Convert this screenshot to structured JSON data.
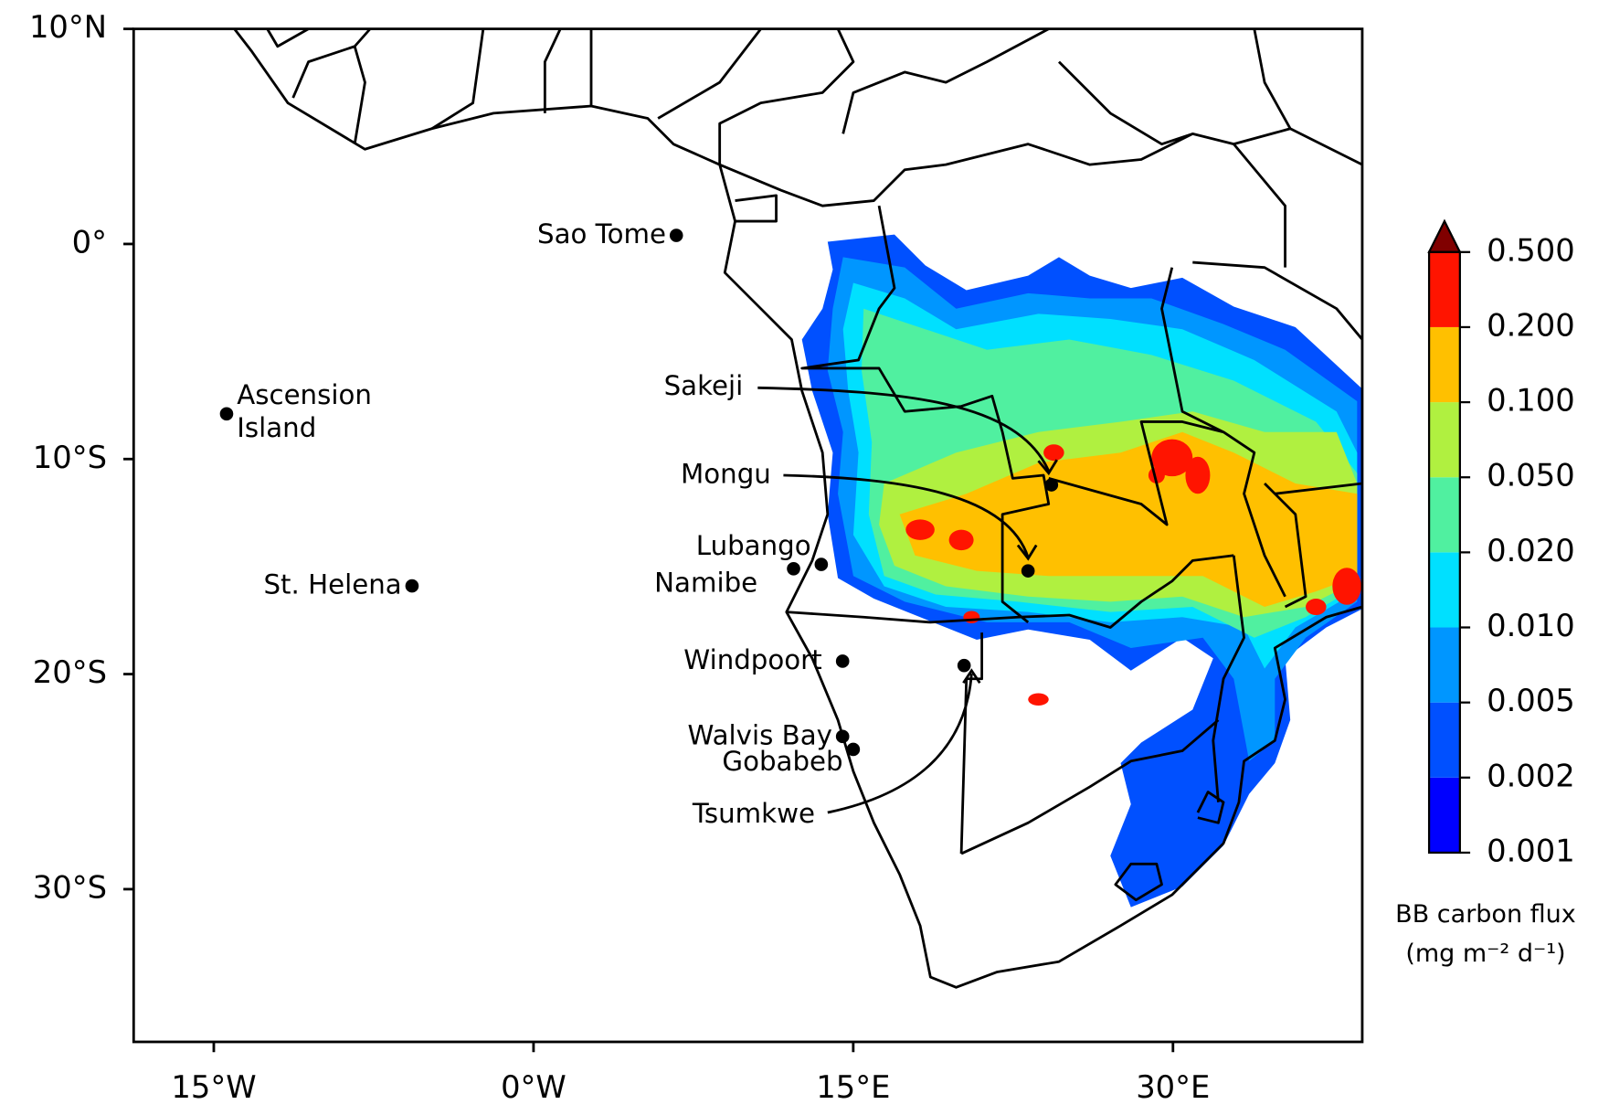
{
  "chart_data": {
    "type": "map",
    "xlim": [
      -18.76,
      38.88
    ],
    "ylim": [
      -37.1,
      10
    ],
    "xticks": [
      {
        "value": -15,
        "label": "15°W"
      },
      {
        "value": 0,
        "label": "0°W"
      },
      {
        "value": 15,
        "label": "15°E"
      },
      {
        "value": 30,
        "label": "30°E"
      }
    ],
    "yticks": [
      {
        "value": 10,
        "label": "10°N"
      },
      {
        "value": 0,
        "label": "0°"
      },
      {
        "value": -10,
        "label": "10°S"
      },
      {
        "value": -20,
        "label": "20°S"
      },
      {
        "value": -30,
        "label": "30°S"
      }
    ],
    "sites": [
      {
        "name": "Sao Tome",
        "lon": 6.7,
        "lat": 0.4
      },
      {
        "name": [
          "Ascension",
          "Island"
        ],
        "lon": -14.4,
        "lat": -7.9
      },
      {
        "name": "St. Helena",
        "lon": -5.7,
        "lat": -15.9
      },
      {
        "name": "Sakeji",
        "lon": 24.3,
        "lat": -11.2
      },
      {
        "name": "Mongu",
        "lon": 23.2,
        "lat": -15.2
      },
      {
        "name": "Lubango",
        "lon": 13.5,
        "lat": -14.9
      },
      {
        "name": "Namibe",
        "lon": 12.2,
        "lat": -15.1
      },
      {
        "name": "Windpoort",
        "lon": 14.5,
        "lat": -19.4
      },
      {
        "name": "Walvis Bay",
        "lon": 14.5,
        "lat": -22.9
      },
      {
        "name": "Gobabeb",
        "lon": 15.0,
        "lat": -23.5
      },
      {
        "name": "Tsumkwe",
        "lon": 20.2,
        "lat": -19.6
      }
    ],
    "colorbar": {
      "title": "BB carbon flux",
      "units": "(mg m⁻² d⁻¹)",
      "ticks": [
        {
          "value": 0.001,
          "label": "0.001"
        },
        {
          "value": 0.002,
          "label": "0.002"
        },
        {
          "value": 0.005,
          "label": "0.005"
        },
        {
          "value": 0.01,
          "label": "0.010"
        },
        {
          "value": 0.02,
          "label": "0.020"
        },
        {
          "value": 0.05,
          "label": "0.050"
        },
        {
          "value": 0.1,
          "label": "0.100"
        },
        {
          "value": 0.2,
          "label": "0.200"
        },
        {
          "value": 0.5,
          "label": "0.500"
        }
      ],
      "colors": [
        "#0000ff",
        "#0050ff",
        "#0096ff",
        "#00e0ff",
        "#50f0a0",
        "#b0f040",
        "#ffc000",
        "#ff1400"
      ],
      "extend_color": "#800000"
    }
  }
}
